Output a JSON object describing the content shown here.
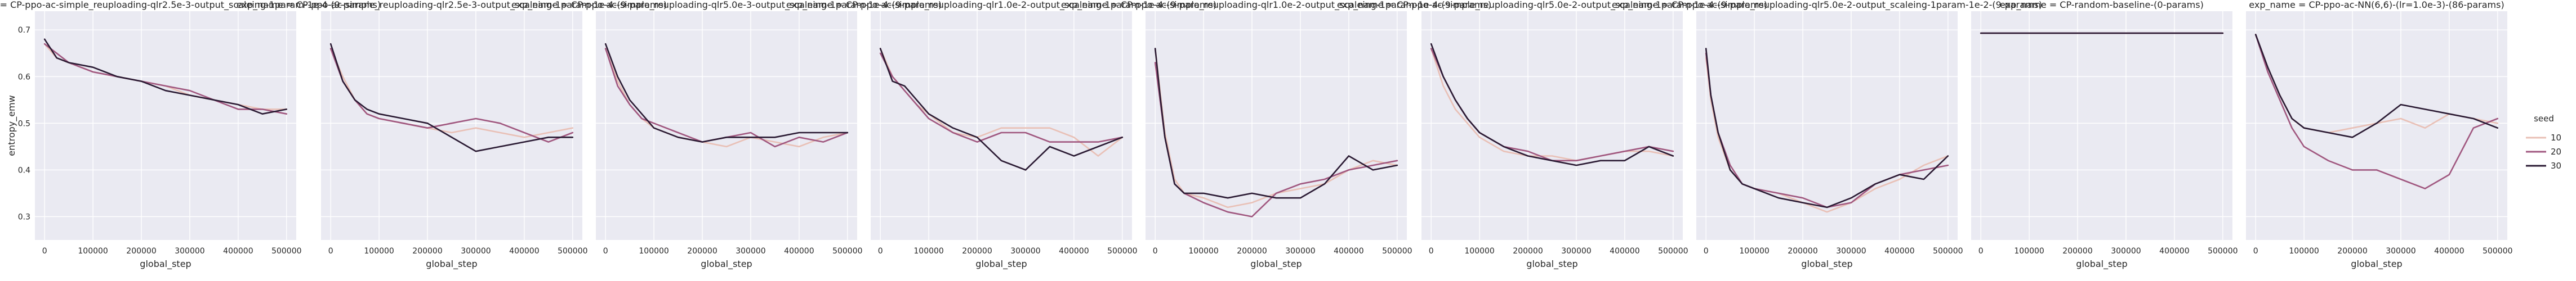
{
  "chart_data": {
    "type": "line",
    "ylabel": "entropy_emw",
    "xlabel": "global_step",
    "xlim": [
      -20000,
      520000
    ],
    "ylim": [
      0.25,
      0.74
    ],
    "x_ticks": [
      0,
      100000,
      200000,
      300000,
      400000,
      500000
    ],
    "y_ticks": [
      0.3,
      0.4,
      0.5,
      0.6,
      0.7
    ],
    "grid": true,
    "legend": {
      "title": "seed",
      "placement": "right",
      "entries": [
        {
          "name": "10",
          "color": "#e9c0b6"
        },
        {
          "name": "20",
          "color": "#a0577f"
        },
        {
          "name": "30",
          "color": "#2a1a33"
        }
      ]
    },
    "panels": [
      {
        "title": "exp_name = CP-ppo-ac-simple_reuploading-qlr2.5e-3-output_scaleing-1param-1e-4-(9-params)",
        "series": [
          {
            "name": "10",
            "x": [
              0,
              25000,
              50000,
              100000,
              150000,
              200000,
              250000,
              300000,
              350000,
              400000,
              450000,
              500000
            ],
            "values": [
              0.67,
              0.64,
              0.63,
              0.61,
              0.6,
              0.59,
              0.58,
              0.56,
              0.55,
              0.54,
              0.53,
              0.53
            ]
          },
          {
            "name": "20",
            "x": [
              0,
              25000,
              50000,
              100000,
              150000,
              200000,
              250000,
              300000,
              350000,
              400000,
              450000,
              500000
            ],
            "values": [
              0.67,
              0.65,
              0.63,
              0.61,
              0.6,
              0.59,
              0.58,
              0.57,
              0.55,
              0.53,
              0.53,
              0.52
            ]
          },
          {
            "name": "30",
            "x": [
              0,
              25000,
              50000,
              100000,
              150000,
              200000,
              250000,
              300000,
              350000,
              400000,
              450000,
              500000
            ],
            "values": [
              0.68,
              0.64,
              0.63,
              0.62,
              0.6,
              0.59,
              0.57,
              0.56,
              0.55,
              0.54,
              0.52,
              0.53
            ]
          }
        ]
      },
      {
        "title": "exp_name = CP-ppo-ac-simple_reuploading-qlr2.5e-3-output_scaleing-1param-1e-4-(9-params)",
        "series": [
          {
            "name": "10",
            "x": [
              0,
              25000,
              50000,
              75000,
              100000,
              150000,
              200000,
              250000,
              300000,
              350000,
              400000,
              450000,
              500000
            ],
            "values": [
              0.66,
              0.6,
              0.55,
              0.52,
              0.51,
              0.5,
              0.49,
              0.48,
              0.49,
              0.48,
              0.47,
              0.48,
              0.49
            ]
          },
          {
            "name": "20",
            "x": [
              0,
              25000,
              50000,
              75000,
              100000,
              150000,
              200000,
              250000,
              300000,
              350000,
              400000,
              450000,
              500000
            ],
            "values": [
              0.66,
              0.59,
              0.55,
              0.52,
              0.51,
              0.5,
              0.49,
              0.5,
              0.51,
              0.5,
              0.48,
              0.46,
              0.48
            ]
          },
          {
            "name": "30",
            "x": [
              0,
              25000,
              50000,
              75000,
              100000,
              150000,
              200000,
              250000,
              300000,
              350000,
              400000,
              450000,
              500000
            ],
            "values": [
              0.67,
              0.59,
              0.55,
              0.53,
              0.52,
              0.51,
              0.5,
              0.47,
              0.44,
              0.45,
              0.46,
              0.47,
              0.47
            ]
          }
        ]
      },
      {
        "title": "exp_name = CP-ppo-ac-simple_reuploading-qlr5.0e-3-output_scaleing-1param-1e-4-(9-params)",
        "series": [
          {
            "name": "10",
            "x": [
              0,
              25000,
              50000,
              75000,
              100000,
              150000,
              200000,
              250000,
              300000,
              350000,
              400000,
              450000,
              500000
            ],
            "values": [
              0.66,
              0.59,
              0.54,
              0.51,
              0.49,
              0.47,
              0.46,
              0.45,
              0.47,
              0.46,
              0.45,
              0.47,
              0.48
            ]
          },
          {
            "name": "20",
            "x": [
              0,
              25000,
              50000,
              75000,
              100000,
              150000,
              200000,
              250000,
              300000,
              350000,
              400000,
              450000,
              500000
            ],
            "values": [
              0.66,
              0.58,
              0.54,
              0.51,
              0.5,
              0.48,
              0.46,
              0.47,
              0.48,
              0.45,
              0.47,
              0.46,
              0.48
            ]
          },
          {
            "name": "30",
            "x": [
              0,
              25000,
              50000,
              75000,
              100000,
              150000,
              200000,
              250000,
              300000,
              350000,
              400000,
              450000,
              500000
            ],
            "values": [
              0.67,
              0.6,
              0.55,
              0.52,
              0.49,
              0.47,
              0.46,
              0.47,
              0.47,
              0.47,
              0.48,
              0.48,
              0.48
            ]
          }
        ]
      },
      {
        "title": "exp_name = CP-ppo-ac-simple_reuploading-qlr1.0e-2-output_scaleing-1param-1e-4-(9-params)",
        "series": [
          {
            "name": "10",
            "x": [
              0,
              25000,
              50000,
              75000,
              100000,
              150000,
              200000,
              250000,
              300000,
              350000,
              400000,
              450000,
              500000
            ],
            "values": [
              0.66,
              0.6,
              0.57,
              0.54,
              0.52,
              0.48,
              0.47,
              0.49,
              0.49,
              0.49,
              0.47,
              0.43,
              0.47
            ]
          },
          {
            "name": "20",
            "x": [
              0,
              25000,
              50000,
              75000,
              100000,
              150000,
              200000,
              250000,
              300000,
              350000,
              400000,
              450000,
              500000
            ],
            "values": [
              0.65,
              0.6,
              0.57,
              0.54,
              0.51,
              0.48,
              0.46,
              0.48,
              0.48,
              0.46,
              0.46,
              0.46,
              0.47
            ]
          },
          {
            "name": "30",
            "x": [
              0,
              25000,
              50000,
              75000,
              100000,
              150000,
              200000,
              250000,
              300000,
              350000,
              400000,
              450000,
              500000
            ],
            "values": [
              0.66,
              0.59,
              0.58,
              0.55,
              0.52,
              0.49,
              0.47,
              0.42,
              0.4,
              0.45,
              0.43,
              0.45,
              0.47
            ]
          }
        ]
      },
      {
        "title": "exp_name = CP-ppo-ac-simple_reuploading-qlr1.0e-2-output_scaleing-1param-1e-4-(9-params)",
        "series": [
          {
            "name": "10",
            "x": [
              0,
              10000,
              20000,
              40000,
              60000,
              100000,
              150000,
              200000,
              250000,
              300000,
              350000,
              400000,
              450000,
              500000
            ],
            "values": [
              0.66,
              0.57,
              0.48,
              0.38,
              0.35,
              0.34,
              0.32,
              0.33,
              0.35,
              0.36,
              0.37,
              0.4,
              0.42,
              0.41
            ]
          },
          {
            "name": "20",
            "x": [
              0,
              10000,
              20000,
              40000,
              60000,
              100000,
              150000,
              200000,
              250000,
              300000,
              350000,
              400000,
              450000,
              500000
            ],
            "values": [
              0.63,
              0.55,
              0.47,
              0.37,
              0.35,
              0.33,
              0.31,
              0.3,
              0.35,
              0.37,
              0.38,
              0.4,
              0.41,
              0.42
            ]
          },
          {
            "name": "30",
            "x": [
              0,
              10000,
              20000,
              40000,
              60000,
              100000,
              150000,
              200000,
              250000,
              300000,
              350000,
              400000,
              450000,
              500000
            ],
            "values": [
              0.66,
              0.56,
              0.47,
              0.37,
              0.35,
              0.35,
              0.34,
              0.35,
              0.34,
              0.34,
              0.37,
              0.43,
              0.4,
              0.41
            ]
          }
        ]
      },
      {
        "title": "exp_name = CP-ppo-ac-simple_reuploading-qlr5.0e-2-output_scaleing-1param-1e-4-(9-params)",
        "series": [
          {
            "name": "10",
            "x": [
              0,
              25000,
              50000,
              75000,
              100000,
              150000,
              200000,
              250000,
              300000,
              350000,
              400000,
              450000,
              500000
            ],
            "values": [
              0.66,
              0.58,
              0.53,
              0.5,
              0.47,
              0.44,
              0.43,
              0.43,
              0.42,
              0.43,
              0.44,
              0.44,
              0.43
            ]
          },
          {
            "name": "20",
            "x": [
              0,
              25000,
              50000,
              75000,
              100000,
              150000,
              200000,
              250000,
              300000,
              350000,
              400000,
              450000,
              500000
            ],
            "values": [
              0.66,
              0.6,
              0.55,
              0.51,
              0.48,
              0.45,
              0.44,
              0.42,
              0.42,
              0.43,
              0.44,
              0.45,
              0.44
            ]
          },
          {
            "name": "30",
            "x": [
              0,
              25000,
              50000,
              75000,
              100000,
              150000,
              200000,
              250000,
              300000,
              350000,
              400000,
              450000,
              500000
            ],
            "values": [
              0.67,
              0.6,
              0.55,
              0.51,
              0.48,
              0.45,
              0.43,
              0.42,
              0.41,
              0.42,
              0.42,
              0.45,
              0.43
            ]
          }
        ]
      },
      {
        "title": "exp_name = CP-ppo-ac-simple_reuploading-qlr5.0e-2-output_scaleing-1param-1e-2-(9-params)",
        "series": [
          {
            "name": "10",
            "x": [
              0,
              10000,
              25000,
              50000,
              75000,
              100000,
              150000,
              200000,
              250000,
              300000,
              350000,
              400000,
              450000,
              500000
            ],
            "values": [
              0.64,
              0.55,
              0.47,
              0.4,
              0.37,
              0.36,
              0.35,
              0.33,
              0.31,
              0.33,
              0.36,
              0.38,
              0.41,
              0.43
            ]
          },
          {
            "name": "20",
            "x": [
              0,
              10000,
              25000,
              50000,
              75000,
              100000,
              150000,
              200000,
              250000,
              300000,
              350000,
              400000,
              450000,
              500000
            ],
            "values": [
              0.65,
              0.56,
              0.48,
              0.41,
              0.37,
              0.36,
              0.35,
              0.34,
              0.32,
              0.33,
              0.37,
              0.39,
              0.4,
              0.41
            ]
          },
          {
            "name": "30",
            "x": [
              0,
              10000,
              25000,
              50000,
              75000,
              100000,
              150000,
              200000,
              250000,
              300000,
              350000,
              400000,
              450000,
              500000
            ],
            "values": [
              0.66,
              0.56,
              0.48,
              0.4,
              0.37,
              0.36,
              0.34,
              0.33,
              0.32,
              0.34,
              0.37,
              0.39,
              0.38,
              0.43
            ]
          }
        ]
      },
      {
        "title": "exp_name = CP-random-baseline-(0-params)",
        "series": [
          {
            "name": "10",
            "x": [
              0,
              100000,
              200000,
              300000,
              400000,
              500000
            ],
            "values": [
              0.693,
              0.693,
              0.693,
              0.693,
              0.693,
              0.693
            ]
          },
          {
            "name": "20",
            "x": [
              0,
              100000,
              200000,
              300000,
              400000,
              500000
            ],
            "values": [
              0.693,
              0.693,
              0.693,
              0.693,
              0.693,
              0.693
            ]
          },
          {
            "name": "30",
            "x": [
              0,
              100000,
              200000,
              300000,
              400000,
              500000
            ],
            "values": [
              0.693,
              0.693,
              0.693,
              0.693,
              0.693,
              0.693
            ]
          }
        ]
      },
      {
        "title": "exp_name = CP-ppo-ac-NN(6,6)-(lr=1.0e-3)-(86-params)",
        "series": [
          {
            "name": "10",
            "x": [
              0,
              25000,
              50000,
              75000,
              100000,
              150000,
              200000,
              250000,
              300000,
              350000,
              400000,
              450000,
              500000
            ],
            "values": [
              0.69,
              0.62,
              0.56,
              0.51,
              0.49,
              0.48,
              0.49,
              0.5,
              0.51,
              0.49,
              0.52,
              0.51,
              0.5
            ]
          },
          {
            "name": "20",
            "x": [
              0,
              25000,
              50000,
              75000,
              100000,
              150000,
              200000,
              250000,
              300000,
              350000,
              400000,
              450000,
              500000
            ],
            "values": [
              0.69,
              0.61,
              0.55,
              0.49,
              0.45,
              0.42,
              0.4,
              0.4,
              0.38,
              0.36,
              0.39,
              0.49,
              0.51
            ]
          },
          {
            "name": "30",
            "x": [
              0,
              25000,
              50000,
              75000,
              100000,
              150000,
              200000,
              250000,
              300000,
              350000,
              400000,
              450000,
              500000
            ],
            "values": [
              0.69,
              0.62,
              0.56,
              0.51,
              0.49,
              0.48,
              0.47,
              0.5,
              0.54,
              0.53,
              0.52,
              0.51,
              0.49
            ]
          }
        ]
      }
    ]
  }
}
